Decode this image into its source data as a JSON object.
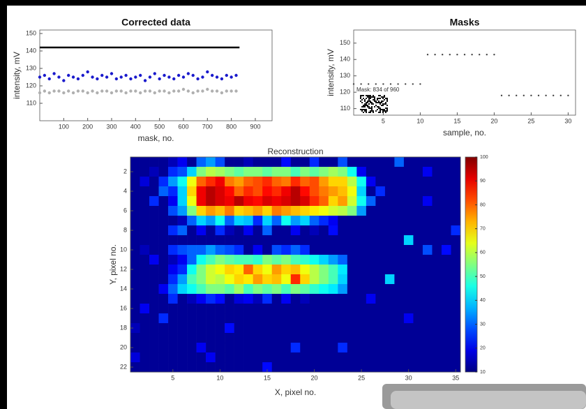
{
  "chart_data": [
    {
      "type": "scatter",
      "title": "Corrected data",
      "xlabel": "mask, no.",
      "ylabel": "intensity, mV",
      "xlim": [
        0,
        970
      ],
      "ylim": [
        100,
        152
      ],
      "xticks": [
        100,
        200,
        300,
        400,
        500,
        600,
        700,
        800,
        900
      ],
      "yticks": [
        110,
        120,
        130,
        140,
        150
      ],
      "series": [
        {
          "color": "#000000",
          "mode": "line",
          "x": [
            0,
            834
          ],
          "values": [
            142,
            142
          ]
        },
        {
          "color": "#1a1acc",
          "mode": "markers",
          "x": [
            0,
            20,
            40,
            60,
            80,
            100,
            120,
            140,
            160,
            180,
            200,
            220,
            240,
            260,
            280,
            300,
            320,
            340,
            360,
            380,
            400,
            420,
            440,
            460,
            480,
            500,
            520,
            540,
            560,
            580,
            600,
            620,
            640,
            660,
            680,
            700,
            720,
            740,
            760,
            780,
            800,
            820
          ],
          "values": [
            125,
            126,
            124,
            127,
            125,
            123,
            126,
            125,
            124,
            126,
            128,
            125,
            124,
            126,
            125,
            127,
            124,
            125,
            126,
            124,
            125,
            126,
            123,
            125,
            127,
            124,
            126,
            125,
            124,
            126,
            125,
            127,
            126,
            124,
            125,
            128,
            126,
            125,
            124,
            126,
            125,
            126
          ]
        },
        {
          "color": "#b0b0b0",
          "mode": "markers",
          "x": [
            0,
            20,
            40,
            60,
            80,
            100,
            120,
            140,
            160,
            180,
            200,
            220,
            240,
            260,
            280,
            300,
            320,
            340,
            360,
            380,
            400,
            420,
            440,
            460,
            480,
            500,
            520,
            540,
            560,
            580,
            600,
            620,
            640,
            660,
            680,
            700,
            720,
            740,
            760,
            780,
            800,
            820
          ],
          "values": [
            116,
            117,
            116,
            117,
            117,
            116,
            117,
            116,
            117,
            117,
            116,
            117,
            116,
            117,
            117,
            116,
            117,
            117,
            116,
            117,
            117,
            116,
            117,
            117,
            116,
            117,
            117,
            116,
            117,
            117,
            118,
            117,
            116,
            117,
            117,
            118,
            117,
            117,
            116,
            117,
            117,
            117
          ]
        }
      ]
    },
    {
      "type": "scatter",
      "title": "Masks",
      "xlabel": "sample, no.",
      "ylabel": "intensity, mV",
      "annotation": "Mask: 834 of 960",
      "xlim": [
        1,
        31
      ],
      "ylim": [
        106,
        158
      ],
      "xticks": [
        5,
        10,
        15,
        20,
        25,
        30
      ],
      "yticks": [
        110,
        120,
        130,
        140,
        150
      ],
      "series": [
        {
          "color": "#444444",
          "mode": "markers",
          "x": [
            1,
            2,
            3,
            4,
            5,
            6,
            7,
            8,
            9,
            10,
            11,
            12,
            13,
            14,
            15,
            16,
            17,
            18,
            19,
            20,
            21,
            22,
            23,
            24,
            25,
            26,
            27,
            28,
            29,
            30
          ],
          "values": [
            125,
            125,
            125,
            125,
            125,
            125,
            125,
            125,
            125,
            125,
            143,
            143,
            143,
            143,
            143,
            143,
            143,
            143,
            143,
            143,
            118,
            118,
            118,
            118,
            118,
            118,
            118,
            118,
            118,
            118
          ]
        }
      ]
    },
    {
      "type": "heatmap",
      "title": "Reconstruction",
      "xlabel": "X, pixel no.",
      "ylabel": "Y, pixel no.",
      "colormap": "jet",
      "xlim": [
        0.5,
        35.5
      ],
      "ylim": [
        0.5,
        22.5
      ],
      "xticks": [
        5,
        10,
        15,
        20,
        25,
        30,
        35
      ],
      "yticks": [
        2,
        4,
        6,
        8,
        10,
        12,
        14,
        16,
        18,
        20,
        22
      ],
      "clim": [
        10,
        100
      ],
      "cticks": [
        10,
        20,
        30,
        40,
        50,
        60,
        70,
        80,
        90,
        100
      ],
      "x": [
        1,
        2,
        3,
        4,
        5,
        6,
        7,
        8,
        9,
        10,
        11,
        12,
        13,
        14,
        15,
        16,
        17,
        18,
        19,
        20,
        21,
        22,
        23,
        24,
        25,
        26,
        27,
        28,
        29,
        30,
        31,
        32,
        33,
        34,
        35
      ],
      "y": [
        1,
        2,
        3,
        4,
        5,
        6,
        7,
        8,
        9,
        10,
        11,
        12,
        13,
        14,
        15,
        16,
        17,
        18,
        19,
        20,
        21,
        22
      ],
      "z": [
        [
          12,
          12,
          12,
          12,
          15,
          20,
          12,
          30,
          35,
          28,
          12,
          12,
          15,
          12,
          12,
          12,
          22,
          12,
          12,
          25,
          12,
          12,
          28,
          12,
          12,
          12,
          12,
          12,
          30,
          12,
          12,
          12,
          12,
          12,
          12
        ],
        [
          12,
          12,
          15,
          12,
          25,
          28,
          40,
          55,
          60,
          58,
          55,
          52,
          55,
          55,
          52,
          55,
          55,
          50,
          55,
          52,
          55,
          58,
          55,
          45,
          20,
          12,
          12,
          12,
          12,
          12,
          12,
          20,
          12,
          12,
          12
        ],
        [
          12,
          18,
          12,
          25,
          35,
          45,
          65,
          80,
          85,
          90,
          78,
          75,
          80,
          82,
          85,
          80,
          78,
          85,
          80,
          82,
          75,
          70,
          70,
          60,
          45,
          20,
          12,
          12,
          12,
          12,
          12,
          12,
          12,
          12,
          12
        ],
        [
          12,
          12,
          12,
          30,
          25,
          40,
          70,
          90,
          95,
          92,
          88,
          80,
          85,
          82,
          88,
          85,
          90,
          95,
          88,
          82,
          78,
          75,
          72,
          65,
          40,
          12,
          25,
          12,
          12,
          12,
          12,
          12,
          12,
          12,
          12
        ],
        [
          12,
          12,
          25,
          12,
          20,
          40,
          65,
          90,
          95,
          92,
          90,
          95,
          90,
          88,
          92,
          90,
          92,
          95,
          92,
          85,
          80,
          70,
          75,
          62,
          45,
          30,
          12,
          12,
          12,
          12,
          12,
          20,
          12,
          12,
          12
        ],
        [
          12,
          12,
          12,
          12,
          28,
          35,
          55,
          70,
          75,
          72,
          78,
          70,
          72,
          75,
          70,
          78,
          75,
          72,
          70,
          68,
          65,
          62,
          60,
          55,
          35,
          12,
          12,
          12,
          12,
          12,
          12,
          12,
          12,
          12,
          12
        ],
        [
          12,
          12,
          12,
          12,
          12,
          15,
          30,
          40,
          35,
          45,
          30,
          40,
          38,
          25,
          40,
          30,
          45,
          35,
          40,
          30,
          25,
          20,
          12,
          12,
          12,
          12,
          12,
          12,
          12,
          12,
          12,
          12,
          12,
          12,
          12
        ],
        [
          12,
          12,
          12,
          12,
          25,
          30,
          12,
          20,
          12,
          25,
          15,
          12,
          20,
          12,
          30,
          12,
          12,
          20,
          12,
          15,
          12,
          22,
          12,
          12,
          12,
          12,
          12,
          12,
          12,
          12,
          12,
          12,
          12,
          12,
          25
        ],
        [
          12,
          12,
          12,
          12,
          12,
          12,
          12,
          12,
          12,
          12,
          12,
          12,
          12,
          12,
          12,
          12,
          12,
          12,
          12,
          12,
          12,
          12,
          12,
          12,
          12,
          12,
          12,
          12,
          12,
          40,
          12,
          12,
          12,
          12,
          12
        ],
        [
          12,
          15,
          12,
          12,
          25,
          28,
          30,
          30,
          35,
          30,
          28,
          25,
          12,
          20,
          12,
          28,
          25,
          30,
          25,
          12,
          12,
          12,
          12,
          12,
          12,
          12,
          12,
          12,
          12,
          12,
          12,
          28,
          12,
          22,
          12
        ],
        [
          12,
          12,
          20,
          12,
          15,
          20,
          30,
          45,
          50,
          55,
          52,
          50,
          50,
          48,
          55,
          52,
          55,
          50,
          48,
          45,
          40,
          35,
          30,
          12,
          12,
          12,
          12,
          12,
          12,
          12,
          12,
          12,
          12,
          12,
          12
        ],
        [
          12,
          12,
          12,
          12,
          20,
          25,
          45,
          55,
          62,
          65,
          70,
          68,
          80,
          70,
          65,
          75,
          70,
          72,
          65,
          60,
          55,
          50,
          42,
          12,
          12,
          12,
          12,
          12,
          12,
          12,
          12,
          12,
          12,
          12,
          12
        ],
        [
          12,
          12,
          12,
          12,
          25,
          35,
          50,
          55,
          62,
          60,
          65,
          70,
          68,
          75,
          70,
          72,
          65,
          85,
          70,
          60,
          55,
          50,
          40,
          12,
          12,
          12,
          12,
          40,
          12,
          12,
          12,
          12,
          12,
          12,
          12
        ],
        [
          12,
          12,
          12,
          20,
          30,
          40,
          45,
          50,
          55,
          55,
          52,
          58,
          50,
          55,
          52,
          55,
          50,
          55,
          52,
          48,
          45,
          42,
          35,
          12,
          12,
          12,
          12,
          12,
          12,
          12,
          12,
          12,
          12,
          12,
          12
        ],
        [
          12,
          12,
          12,
          12,
          25,
          12,
          15,
          20,
          25,
          22,
          12,
          18,
          20,
          15,
          25,
          12,
          20,
          12,
          15,
          12,
          12,
          12,
          12,
          12,
          12,
          20,
          12,
          12,
          12,
          12,
          12,
          12,
          12,
          12,
          12
        ],
        [
          12,
          20,
          12,
          12,
          12,
          12,
          12,
          12,
          12,
          12,
          12,
          12,
          12,
          12,
          12,
          12,
          12,
          12,
          12,
          12,
          12,
          12,
          12,
          12,
          12,
          12,
          12,
          12,
          12,
          12,
          12,
          12,
          12,
          12,
          12
        ],
        [
          12,
          12,
          12,
          25,
          12,
          12,
          12,
          12,
          12,
          12,
          12,
          12,
          12,
          12,
          12,
          12,
          12,
          12,
          12,
          12,
          12,
          12,
          12,
          12,
          12,
          12,
          12,
          12,
          12,
          20,
          12,
          12,
          12,
          12,
          12
        ],
        [
          15,
          12,
          12,
          12,
          12,
          12,
          12,
          12,
          12,
          12,
          22,
          12,
          12,
          12,
          12,
          12,
          12,
          12,
          12,
          12,
          12,
          12,
          12,
          12,
          12,
          12,
          12,
          12,
          12,
          12,
          12,
          12,
          12,
          12,
          12
        ],
        [
          12,
          12,
          12,
          12,
          12,
          12,
          12,
          12,
          12,
          12,
          12,
          12,
          12,
          12,
          12,
          12,
          12,
          12,
          12,
          12,
          12,
          12,
          12,
          12,
          12,
          12,
          12,
          12,
          12,
          12,
          12,
          12,
          12,
          12,
          12
        ],
        [
          12,
          12,
          12,
          12,
          12,
          12,
          12,
          20,
          12,
          12,
          12,
          12,
          12,
          12,
          12,
          12,
          12,
          25,
          12,
          12,
          12,
          12,
          25,
          12,
          12,
          12,
          12,
          12,
          12,
          12,
          12,
          12,
          12,
          12,
          12
        ],
        [
          18,
          12,
          12,
          12,
          12,
          12,
          12,
          12,
          20,
          12,
          12,
          12,
          12,
          12,
          12,
          12,
          12,
          12,
          12,
          12,
          12,
          12,
          12,
          12,
          12,
          12,
          12,
          12,
          12,
          12,
          12,
          12,
          12,
          12,
          12
        ],
        [
          12,
          12,
          12,
          12,
          12,
          12,
          12,
          12,
          12,
          12,
          12,
          12,
          12,
          12,
          22,
          12,
          12,
          12,
          12,
          12,
          12,
          12,
          12,
          12,
          12,
          12,
          12,
          12,
          12,
          12,
          12,
          12,
          12,
          12,
          12
        ]
      ]
    }
  ]
}
